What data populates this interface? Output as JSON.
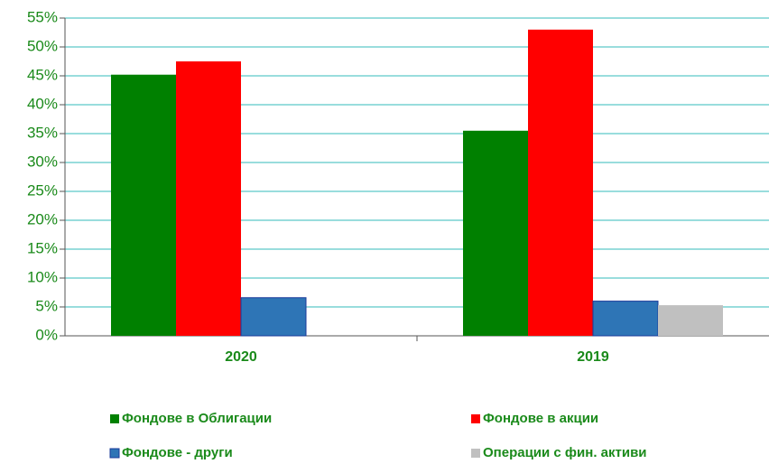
{
  "chart_data": {
    "type": "bar",
    "categories": [
      "2020",
      "2019"
    ],
    "series": [
      {
        "name": "Фондове в Облигации",
        "color": "#008000",
        "values": [
          45.2,
          35.5
        ]
      },
      {
        "name": "Фондове в акции",
        "color": "#ff0000",
        "values": [
          47.5,
          53
        ]
      },
      {
        "name": "Фондове - други",
        "color": "#2e75b6",
        "values": [
          6.6,
          6.0
        ]
      },
      {
        "name": "Операции с фин. активи",
        "color": "#c0c0c0",
        "values": [
          null,
          5.3
        ]
      }
    ],
    "ylim": [
      0,
      55
    ],
    "yticks": [
      {
        "value": 0,
        "label": "0%"
      },
      {
        "value": 5,
        "label": "5%"
      },
      {
        "value": 10,
        "label": "10%"
      },
      {
        "value": 15,
        "label": "15%"
      },
      {
        "value": 20,
        "label": "20%"
      },
      {
        "value": 25,
        "label": "25%"
      },
      {
        "value": 30,
        "label": "30%"
      },
      {
        "value": 35,
        "label": "35%"
      },
      {
        "value": 40,
        "label": "40%"
      },
      {
        "value": 45,
        "label": "45%"
      },
      {
        "value": 50,
        "label": "50%"
      },
      {
        "value": 55,
        "label": "55%"
      }
    ],
    "grid": true
  }
}
